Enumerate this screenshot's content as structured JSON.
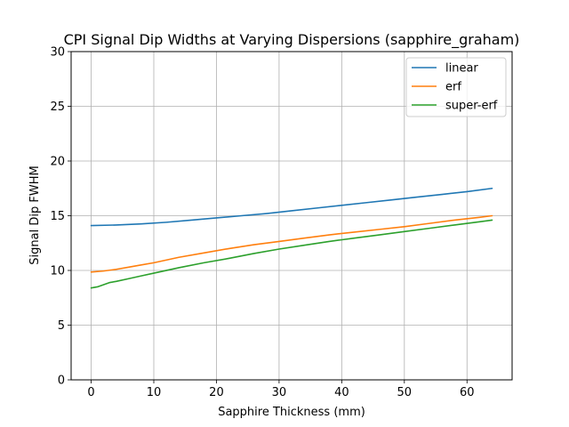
{
  "chart_data": {
    "type": "line",
    "title": "CPI Signal Dip Widths at Varying Dispersions (sapphire_graham)",
    "xlabel": "Sapphire Thickness (mm)",
    "ylabel": "Signal Dip FWHM",
    "xlim": [
      -3.2,
      67.2
    ],
    "ylim": [
      0,
      30
    ],
    "xticks": [
      0,
      10,
      20,
      30,
      40,
      50,
      60
    ],
    "yticks": [
      0,
      5,
      10,
      15,
      20,
      25,
      30
    ],
    "grid": true,
    "legend_position": "top-right",
    "series": [
      {
        "name": "linear",
        "color": "#1f77b4",
        "x": [
          0,
          4,
          8,
          12,
          16,
          20,
          24,
          28,
          32,
          36,
          40,
          44,
          48,
          52,
          56,
          60,
          64
        ],
        "y": [
          14.1,
          14.15,
          14.25,
          14.4,
          14.6,
          14.8,
          15.0,
          15.2,
          15.45,
          15.7,
          15.95,
          16.2,
          16.45,
          16.7,
          16.95,
          17.2,
          17.5
        ]
      },
      {
        "name": "erf",
        "color": "#ff7f0e",
        "x": [
          0,
          2,
          4,
          6,
          8,
          10,
          14,
          18,
          22,
          26,
          30,
          34,
          38,
          42,
          46,
          50,
          54,
          58,
          62,
          64
        ],
        "y": [
          9.85,
          9.95,
          10.1,
          10.3,
          10.5,
          10.7,
          11.2,
          11.6,
          12.0,
          12.35,
          12.65,
          12.95,
          13.25,
          13.5,
          13.75,
          14.0,
          14.3,
          14.6,
          14.85,
          15.0
        ]
      },
      {
        "name": "super-erf",
        "color": "#2ca02c",
        "x": [
          0,
          1,
          2,
          3,
          4,
          6,
          8,
          10,
          14,
          18,
          22,
          26,
          30,
          34,
          38,
          42,
          46,
          50,
          54,
          58,
          62,
          64
        ],
        "y": [
          8.4,
          8.5,
          8.7,
          8.9,
          9.0,
          9.25,
          9.5,
          9.75,
          10.25,
          10.7,
          11.1,
          11.55,
          11.95,
          12.3,
          12.65,
          12.95,
          13.25,
          13.55,
          13.85,
          14.15,
          14.45,
          14.6
        ]
      }
    ]
  }
}
